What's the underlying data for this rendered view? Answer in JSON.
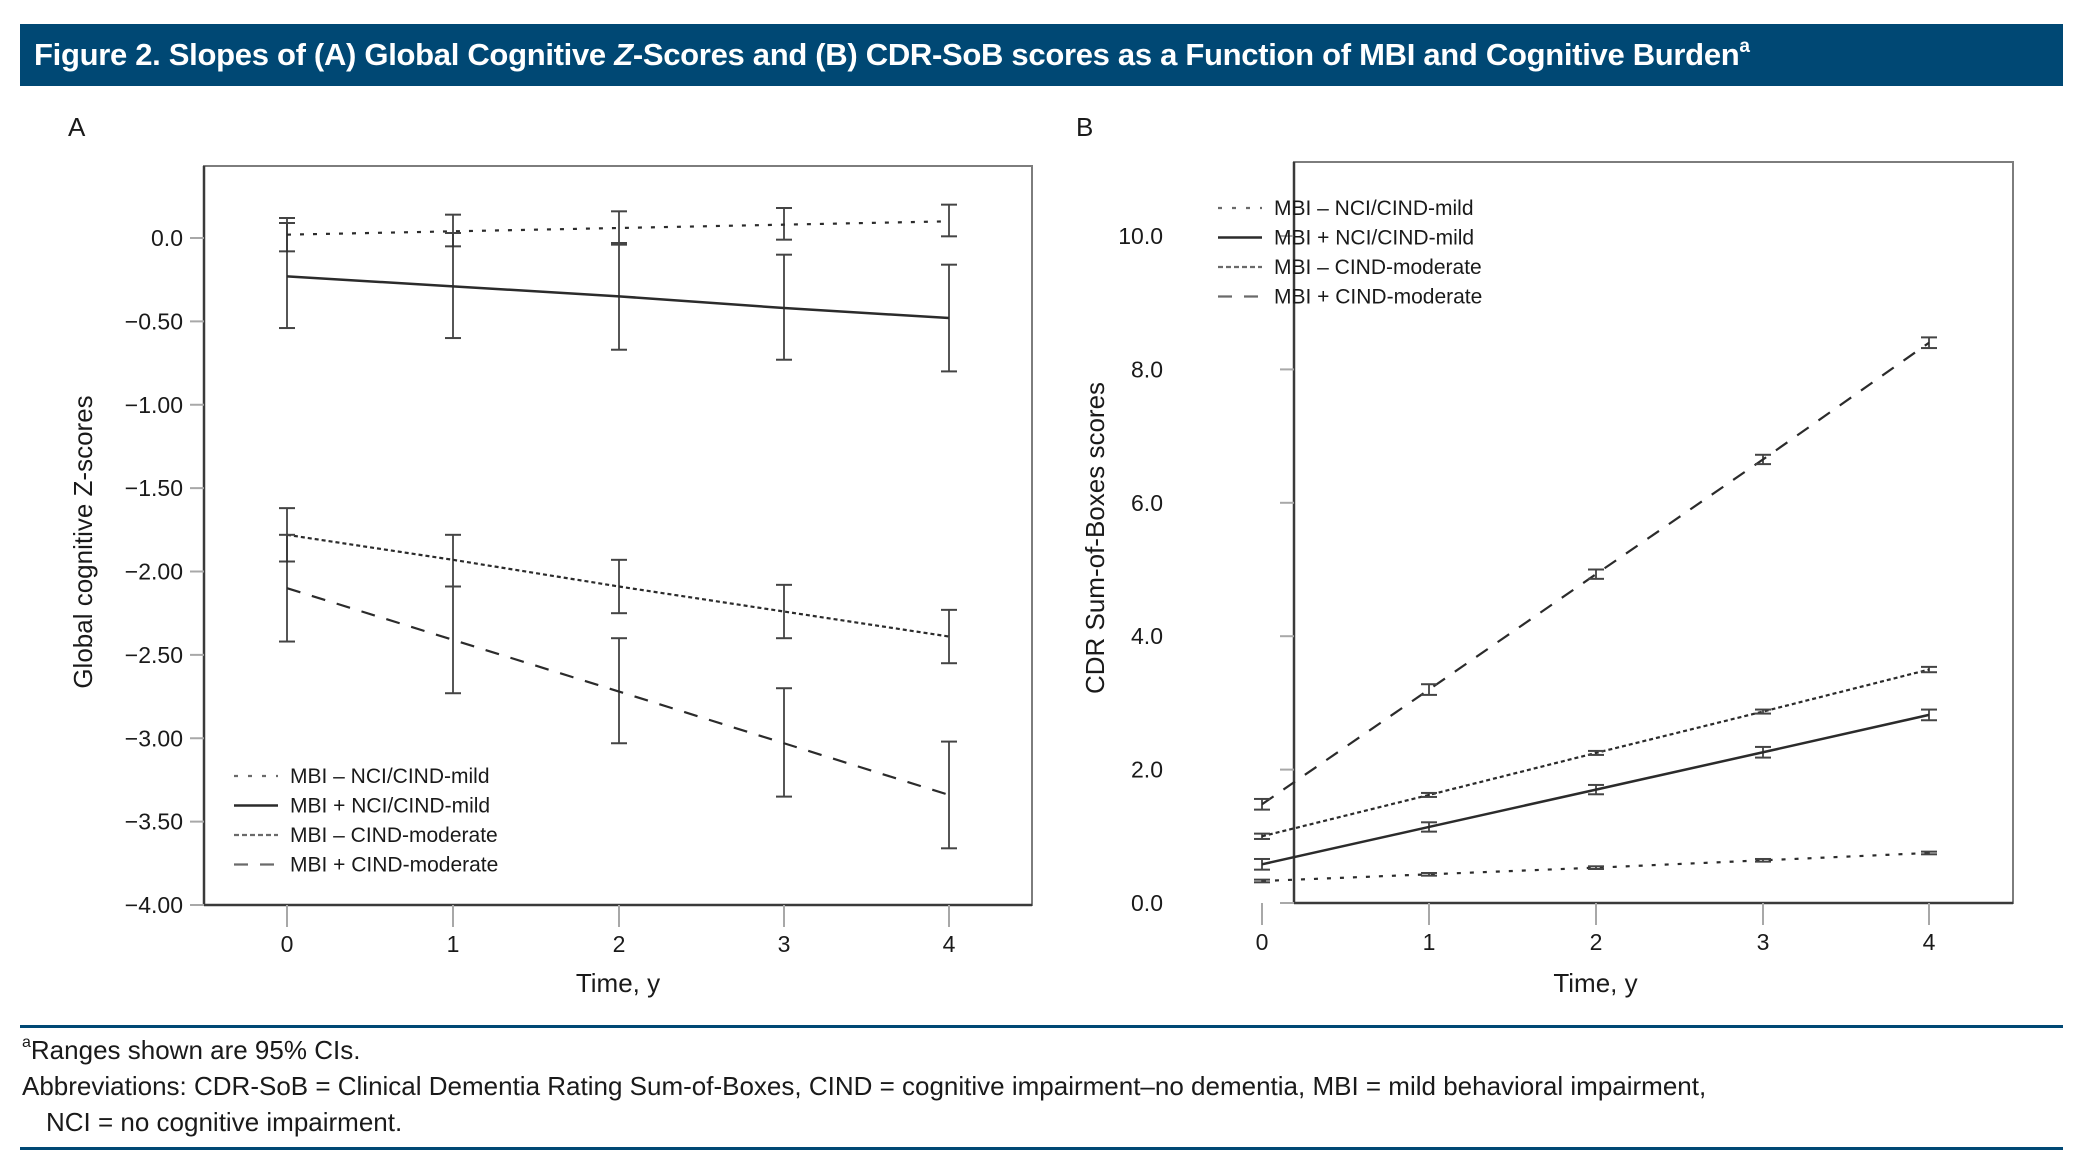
{
  "header": {
    "title_prefix": "Figure 2. Slopes of (A) Global Cognitive ",
    "title_italic": "Z",
    "title_suffix": "-Scores and (B) CDR-SoB scores as a Function of MBI and Cognitive Burden",
    "title_sup": "a",
    "color": "#004874"
  },
  "footnotes": {
    "note_sup": "a",
    "note": "Ranges shown are 95% CIs.",
    "abbrev_line1": "Abbreviations: CDR-SoB = Clinical Dementia Rating Sum-of-Boxes, CIND = cognitive impairment–no dementia, MBI = mild behavioral impairment,",
    "abbrev_line2": "NCI = no cognitive impairment."
  },
  "chart_data": [
    {
      "panel": "A",
      "type": "line",
      "title": "",
      "xlabel": "Time, y",
      "ylabel": "Global cognitive Z-scores",
      "x": [
        0,
        1,
        2,
        3,
        4
      ],
      "xticks": [
        "0",
        "1",
        "2",
        "3",
        "4"
      ],
      "yticks": [
        0.0,
        -0.5,
        -1.0,
        -1.5,
        -2.0,
        -2.5,
        -3.0,
        -3.5,
        -4.0
      ],
      "ytick_labels": [
        "0.0",
        "−0.50",
        "−1.00",
        "−1.50",
        "−2.00",
        "−2.50",
        "−3.00",
        "−3.50",
        "−4.00"
      ],
      "ylim": [
        -4.0,
        0.43
      ],
      "xlim": [
        -0.5,
        4.5
      ],
      "grid": false,
      "legend_position": "bottom-left",
      "series": [
        {
          "name": "MBI – NCI/CIND-mild",
          "style": "dotted",
          "values": [
            0.02,
            0.04,
            0.06,
            0.08,
            0.1
          ],
          "ci_low": [
            -0.08,
            -0.05,
            -0.03,
            -0.01,
            0.01
          ],
          "ci_high": [
            0.12,
            0.14,
            0.16,
            0.18,
            0.2
          ]
        },
        {
          "name": "MBI + NCI/CIND-mild",
          "style": "solid",
          "values": [
            -0.23,
            -0.29,
            -0.35,
            -0.42,
            -0.48
          ],
          "ci_low": [
            -0.54,
            -0.6,
            -0.67,
            -0.73,
            -0.8
          ],
          "ci_high": [
            0.09,
            0.03,
            -0.04,
            -0.1,
            -0.16
          ]
        },
        {
          "name": "MBI – CIND-moderate",
          "style": "fine-dash",
          "values": [
            -1.78,
            -1.93,
            -2.09,
            -2.24,
            -2.39
          ],
          "ci_low": [
            -1.94,
            -2.09,
            -2.25,
            -2.4,
            -2.55
          ],
          "ci_high": [
            -1.62,
            -1.78,
            -1.93,
            -2.08,
            -2.23
          ]
        },
        {
          "name": "MBI + CIND-moderate",
          "style": "long-dash",
          "values": [
            -2.1,
            -2.41,
            -2.72,
            -3.03,
            -3.34
          ],
          "ci_low": [
            -2.42,
            -2.73,
            -3.03,
            -3.35,
            -3.66
          ],
          "ci_high": [
            -1.78,
            -2.09,
            -2.4,
            -2.7,
            -3.02
          ]
        }
      ]
    },
    {
      "panel": "B",
      "type": "line",
      "title": "",
      "xlabel": "Time, y",
      "ylabel": "CDR Sum-of-Boxes scores",
      "x": [
        0,
        1,
        2,
        3,
        4
      ],
      "xticks": [
        "0",
        "1",
        "2",
        "3",
        "4"
      ],
      "yticks": [
        0.0,
        2.0,
        4.0,
        6.0,
        8.0,
        10.0
      ],
      "ytick_labels": [
        "0.0",
        "2.0",
        "4.0",
        "6.0",
        "8.0",
        "10.0"
      ],
      "ylim": [
        0.0,
        11.1
      ],
      "xlim": [
        -0.5,
        4.5
      ],
      "grid": false,
      "legend_position": "top-left",
      "series": [
        {
          "name": "MBI – NCI/CIND-mild",
          "style": "dotted",
          "values": [
            0.33,
            0.43,
            0.53,
            0.64,
            0.75
          ],
          "ci_low": [
            0.31,
            0.41,
            0.51,
            0.62,
            0.73
          ],
          "ci_high": [
            0.35,
            0.45,
            0.55,
            0.66,
            0.77
          ]
        },
        {
          "name": "MBI + NCI/CIND-mild",
          "style": "solid",
          "values": [
            0.58,
            1.14,
            1.7,
            2.26,
            2.82
          ],
          "ci_low": [
            0.5,
            1.07,
            1.63,
            2.18,
            2.74
          ],
          "ci_high": [
            0.66,
            1.21,
            1.77,
            2.34,
            2.9
          ]
        },
        {
          "name": "MBI – CIND-moderate",
          "style": "fine-dash",
          "values": [
            1.0,
            1.62,
            2.25,
            2.87,
            3.5
          ],
          "ci_low": [
            0.96,
            1.59,
            2.22,
            2.84,
            3.46
          ],
          "ci_high": [
            1.04,
            1.65,
            2.28,
            2.9,
            3.54
          ]
        },
        {
          "name": "MBI + CIND-moderate",
          "style": "long-dash",
          "values": [
            1.48,
            3.2,
            4.93,
            6.65,
            8.4
          ],
          "ci_low": [
            1.4,
            3.12,
            4.86,
            6.58,
            8.32
          ],
          "ci_high": [
            1.56,
            3.28,
            5.0,
            6.72,
            8.48
          ]
        }
      ]
    }
  ]
}
